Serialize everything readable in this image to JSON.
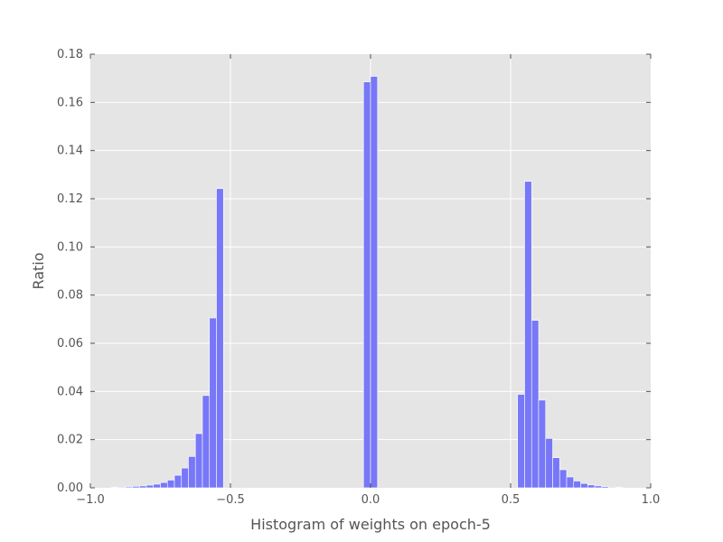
{
  "chart_data": {
    "type": "bar",
    "title": "",
    "xlabel": "Histogram of weights on epoch-5",
    "ylabel": "Ratio",
    "xlim": [
      -1.0,
      1.0
    ],
    "ylim": [
      0.0,
      0.18
    ],
    "xticks": [
      "−1.0",
      "−0.5",
      "0.0",
      "0.5",
      "1.0"
    ],
    "xtick_values": [
      -1.0,
      -0.5,
      0.0,
      0.5,
      1.0
    ],
    "yticks": [
      "0.00",
      "0.02",
      "0.04",
      "0.06",
      "0.08",
      "0.10",
      "0.12",
      "0.14",
      "0.16",
      "0.18"
    ],
    "ytick_values": [
      0.0,
      0.02,
      0.04,
      0.06,
      0.08,
      0.1,
      0.12,
      0.14,
      0.16,
      0.18
    ],
    "grid": true,
    "background_color": "#e5e5e5",
    "bar_color": "#7777f7",
    "bin_width": 0.025,
    "series": [
      {
        "bin_starts": [
          -0.925,
          -0.9,
          -0.875,
          -0.85,
          -0.825,
          -0.8,
          -0.775,
          -0.75,
          -0.725,
          -0.7,
          -0.675,
          -0.65,
          -0.625,
          -0.6,
          -0.575,
          -0.55,
          -0.025,
          0.0,
          0.525,
          0.55,
          0.575,
          0.6,
          0.625,
          0.65,
          0.675,
          0.7,
          0.725,
          0.75,
          0.775,
          0.8,
          0.825,
          0.85,
          0.875
        ],
        "values": [
          0.0002,
          0.0003,
          0.0004,
          0.0006,
          0.0008,
          0.0011,
          0.0015,
          0.0022,
          0.0032,
          0.0052,
          0.0082,
          0.013,
          0.0225,
          0.0383,
          0.0705,
          0.1242,
          0.1685,
          0.1708,
          0.0388,
          0.1272,
          0.0695,
          0.0364,
          0.0205,
          0.0125,
          0.0075,
          0.0045,
          0.0028,
          0.0018,
          0.0012,
          0.0008,
          0.0005,
          0.0003,
          0.0002
        ]
      }
    ]
  }
}
